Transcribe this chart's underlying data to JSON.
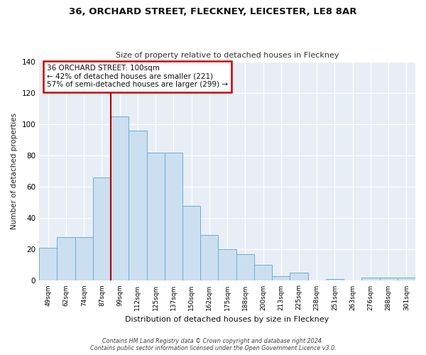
{
  "title1": "36, ORCHARD STREET, FLECKNEY, LEICESTER, LE8 8AR",
  "title2": "Size of property relative to detached houses in Fleckney",
  "xlabel": "Distribution of detached houses by size in Fleckney",
  "ylabel": "Number of detached properties",
  "categories": [
    "49sqm",
    "62sqm",
    "74sqm",
    "87sqm",
    "99sqm",
    "112sqm",
    "125sqm",
    "137sqm",
    "150sqm",
    "162sqm",
    "175sqm",
    "188sqm",
    "200sqm",
    "213sqm",
    "225sqm",
    "238sqm",
    "251sqm",
    "263sqm",
    "276sqm",
    "288sqm",
    "301sqm"
  ],
  "values": [
    21,
    28,
    28,
    66,
    105,
    96,
    82,
    82,
    48,
    29,
    20,
    17,
    10,
    3,
    5,
    0,
    1,
    0,
    2,
    2,
    2
  ],
  "bar_color": "#ccdff0",
  "bar_edge_color": "#6aaed6",
  "annotation_line1": "36 ORCHARD STREET: 100sqm",
  "annotation_line2": "← 42% of detached houses are smaller (221)",
  "annotation_line3": "57% of semi-detached houses are larger (299) →",
  "annotation_box_edge": "#cc0000",
  "vline_color": "#aa0000",
  "background_color": "#e8eef5",
  "footer1": "Contains HM Land Registry data © Crown copyright and database right 2024.",
  "footer2": "Contains public sector information licensed under the Open Government Licence v3.0.",
  "ylim": [
    0,
    140
  ],
  "yticks": [
    0,
    20,
    40,
    60,
    80,
    100,
    120,
    140
  ],
  "vline_x": 3.5
}
